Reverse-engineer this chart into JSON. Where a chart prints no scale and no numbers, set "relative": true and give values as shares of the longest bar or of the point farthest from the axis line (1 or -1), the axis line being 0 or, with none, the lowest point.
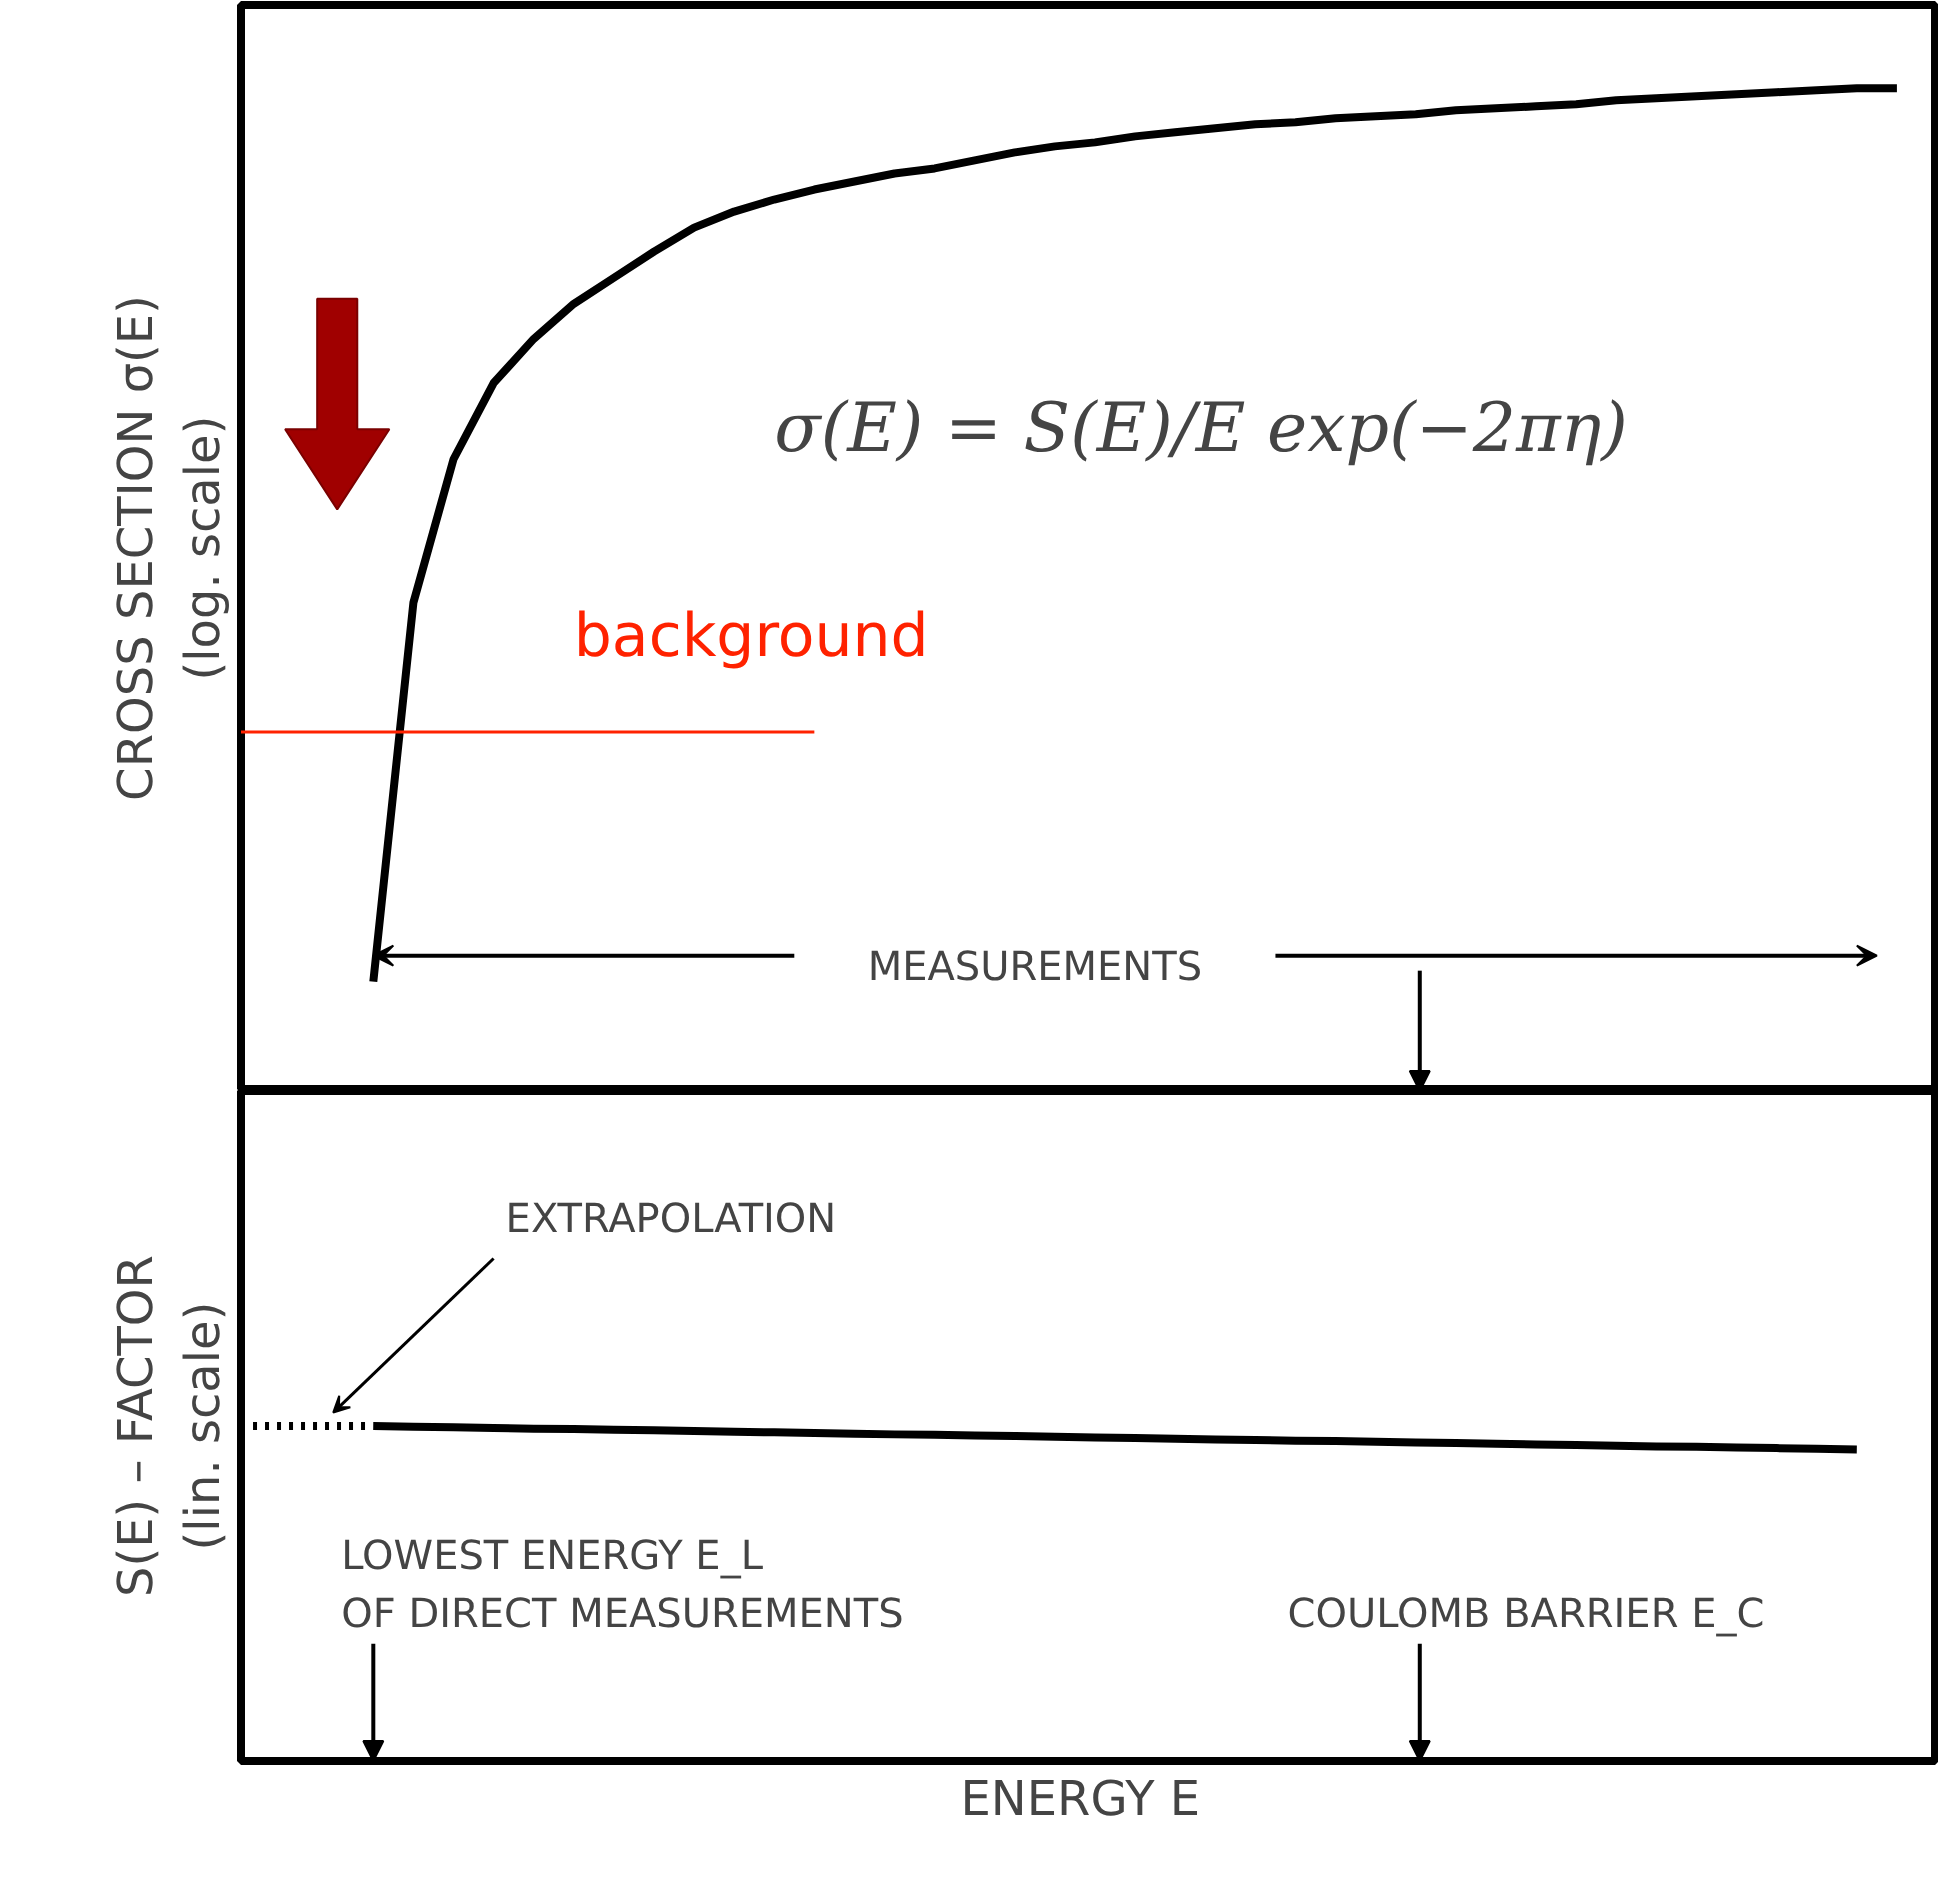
{
  "chart_data": [
    {
      "type": "line",
      "relative": true,
      "ylabel": "CROSS SECTION σ(E)\n(log. scale)",
      "categories": [
        null,
        null,
        null,
        null,
        null,
        null,
        null,
        null,
        null,
        null,
        null,
        null,
        null,
        null,
        null,
        null,
        null,
        null,
        null,
        null,
        null,
        null,
        null,
        null,
        null,
        null,
        null,
        null,
        null,
        null,
        null,
        null,
        null,
        null,
        null,
        null,
        null,
        null,
        null,
        null,
        null,
        null
      ],
      "series": [
        {
          "color": "#000000",
          "line_style": "solid",
          "values": [
            null,
            null,
            null,
            0.109,
            0.487,
            0.63,
            0.706,
            0.75,
            0.785,
            0.811,
            0.837,
            0.861,
            0.877,
            0.889,
            0.899,
            0.907,
            0.915,
            0.92,
            0.928,
            0.936,
            0.942,
            0.946,
            0.952,
            0.956,
            0.96,
            0.964,
            0.966,
            0.97,
            0.972,
            0.974,
            0.978,
            0.98,
            0.982,
            0.984,
            0.988,
            0.99,
            0.992,
            0.994,
            0.996,
            0.998,
            1.0,
            1.0
          ]
        }
      ],
      "ref_lines": [
        {
          "axis": "y",
          "value": 0.358,
          "label": "background",
          "color": "#ff2200"
        }
      ],
      "annotations": [
        "σ(E) = S(E)/E exp(−2πη)",
        "MEASUREMENTS"
      ]
    },
    {
      "type": "line",
      "relative": true,
      "ylabel": "S(E) – FACTOR\n(lin. scale)",
      "xlabel": "ENERGY  E",
      "categories": [
        null,
        null,
        null,
        null,
        null,
        null,
        null,
        null,
        null,
        null,
        null,
        null,
        null,
        null,
        null,
        null,
        null,
        null,
        null,
        null,
        null,
        null,
        null,
        null,
        null,
        null,
        null,
        null,
        null,
        null,
        null,
        null,
        null,
        null,
        null,
        null,
        null,
        null,
        null,
        null,
        null,
        null
      ],
      "series": [
        {
          "color": "#000000",
          "line_style": "dotted",
          "values": [
            1.0,
            1.0,
            1.0,
            1.0,
            null,
            null,
            null,
            null,
            null,
            null,
            null,
            null,
            null,
            null,
            null,
            null,
            null,
            null,
            null,
            null,
            null,
            null,
            null,
            null,
            null,
            null,
            null,
            null,
            null,
            null,
            null,
            null,
            null,
            null,
            null,
            null,
            null,
            null,
            null,
            null,
            null,
            null
          ]
        },
        {
          "color": "#000000",
          "line_style": "solid",
          "values": [
            null,
            null,
            null,
            1.0,
            0.998,
            0.996,
            0.994,
            0.992,
            0.991,
            0.989,
            0.987,
            0.985,
            0.983,
            0.981,
            0.979,
            0.977,
            0.975,
            0.974,
            0.972,
            0.97,
            0.968,
            0.966,
            0.964,
            0.962,
            0.96,
            0.958,
            0.956,
            0.955,
            0.953,
            0.951,
            0.949,
            0.947,
            0.945,
            0.943,
            0.941,
            0.939,
            0.938,
            0.936,
            0.934,
            0.932,
            0.93,
            null
          ]
        }
      ],
      "annotations": [
        "EXTRAPOLATION",
        "LOWEST ENERGY E_L\nOF DIRECT MEASUREMENTS",
        "COULOMB BARRIER E_C"
      ]
    }
  ]
}
